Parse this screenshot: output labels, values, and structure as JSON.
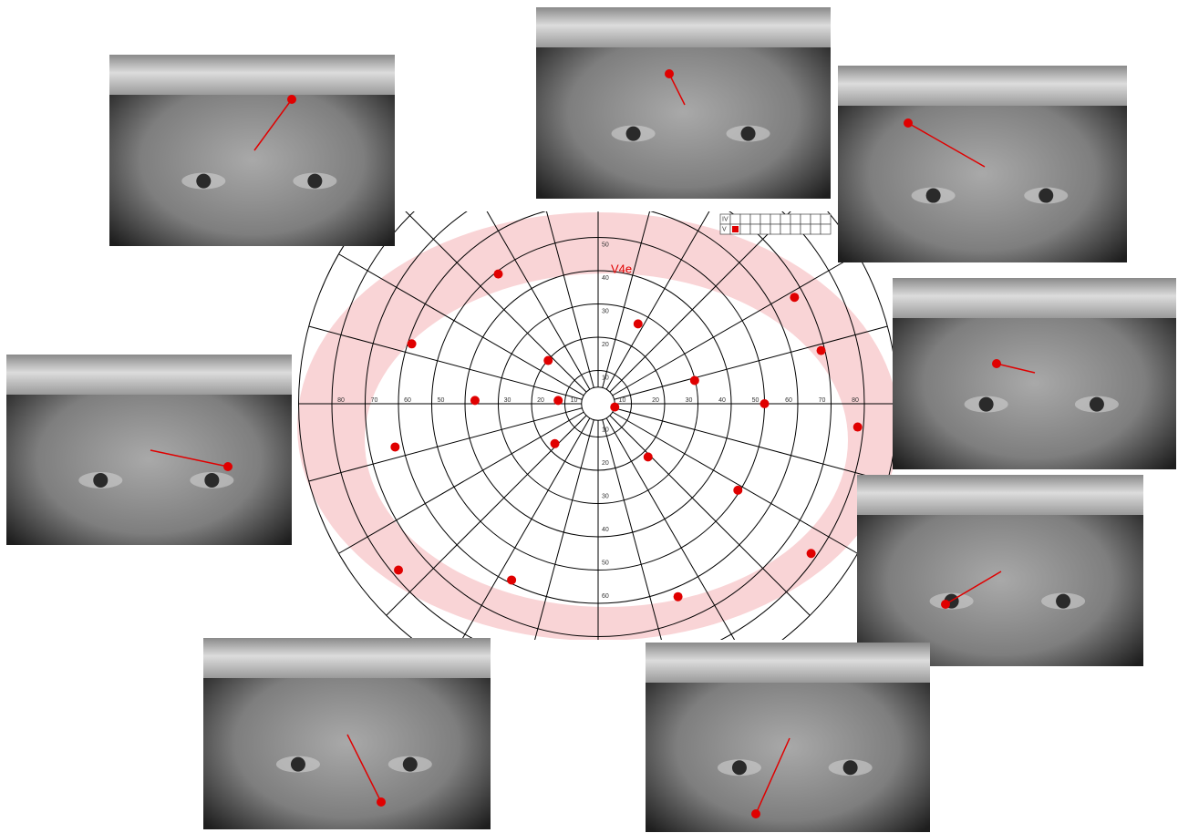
{
  "chart_data": {
    "type": "scatter",
    "annotation": "V4e",
    "legend_rows": [
      "IV",
      "V"
    ],
    "color": "#e00000",
    "isopter_color": "#f9d4d6",
    "x": [
      -30,
      12,
      59,
      -56,
      -15,
      67,
      29,
      -37,
      -12,
      5,
      50,
      78,
      -61,
      -13,
      15,
      42,
      64,
      -60,
      -26,
      24
    ],
    "y": [
      39,
      24,
      32,
      18,
      13,
      16,
      7,
      1,
      1,
      -1,
      0,
      -7,
      -13,
      -12,
      -16,
      -26,
      -45,
      -50,
      -53,
      -58
    ],
    "xlim": [
      -90,
      90
    ],
    "ylim": [
      -90,
      90
    ],
    "xticks": [
      {
        "value": -80,
        "label": "80"
      },
      {
        "value": -70,
        "label": "70"
      },
      {
        "value": -60,
        "label": "60"
      },
      {
        "value": -50,
        "label": "50"
      },
      {
        "value": -40,
        "label": "40"
      },
      {
        "value": -30,
        "label": "30"
      },
      {
        "value": -20,
        "label": "20"
      },
      {
        "value": -10,
        "label": "10"
      },
      10,
      20,
      30,
      40,
      50,
      60,
      70,
      80
    ],
    "yticks": [
      {
        "value": -60,
        "label": "60"
      },
      {
        "value": -50,
        "label": "50"
      },
      {
        "value": -40,
        "label": "40"
      },
      {
        "value": -30,
        "label": "30"
      },
      {
        "value": -20,
        "label": "20"
      },
      {
        "value": -10,
        "label": "10"
      },
      10,
      20,
      30,
      40,
      50
    ]
  }
}
